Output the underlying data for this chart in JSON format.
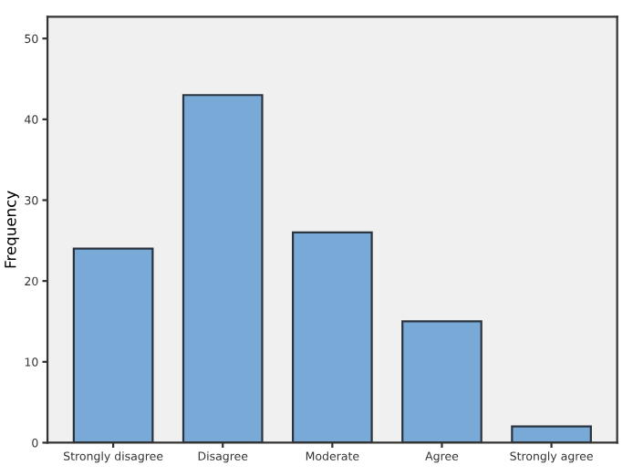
{
  "chart_data": {
    "type": "bar",
    "ylabel": "Frequency",
    "categories": [
      "Strongly disagree",
      "Disagree",
      "Moderate",
      "Agree",
      "Strongly agree"
    ],
    "values": [
      24,
      43,
      26,
      15,
      2
    ],
    "color": "#79a9d6",
    "ylim": [
      0,
      52.7
    ],
    "yticks": [
      0,
      10,
      20,
      30,
      40,
      50
    ],
    "grid": false
  }
}
